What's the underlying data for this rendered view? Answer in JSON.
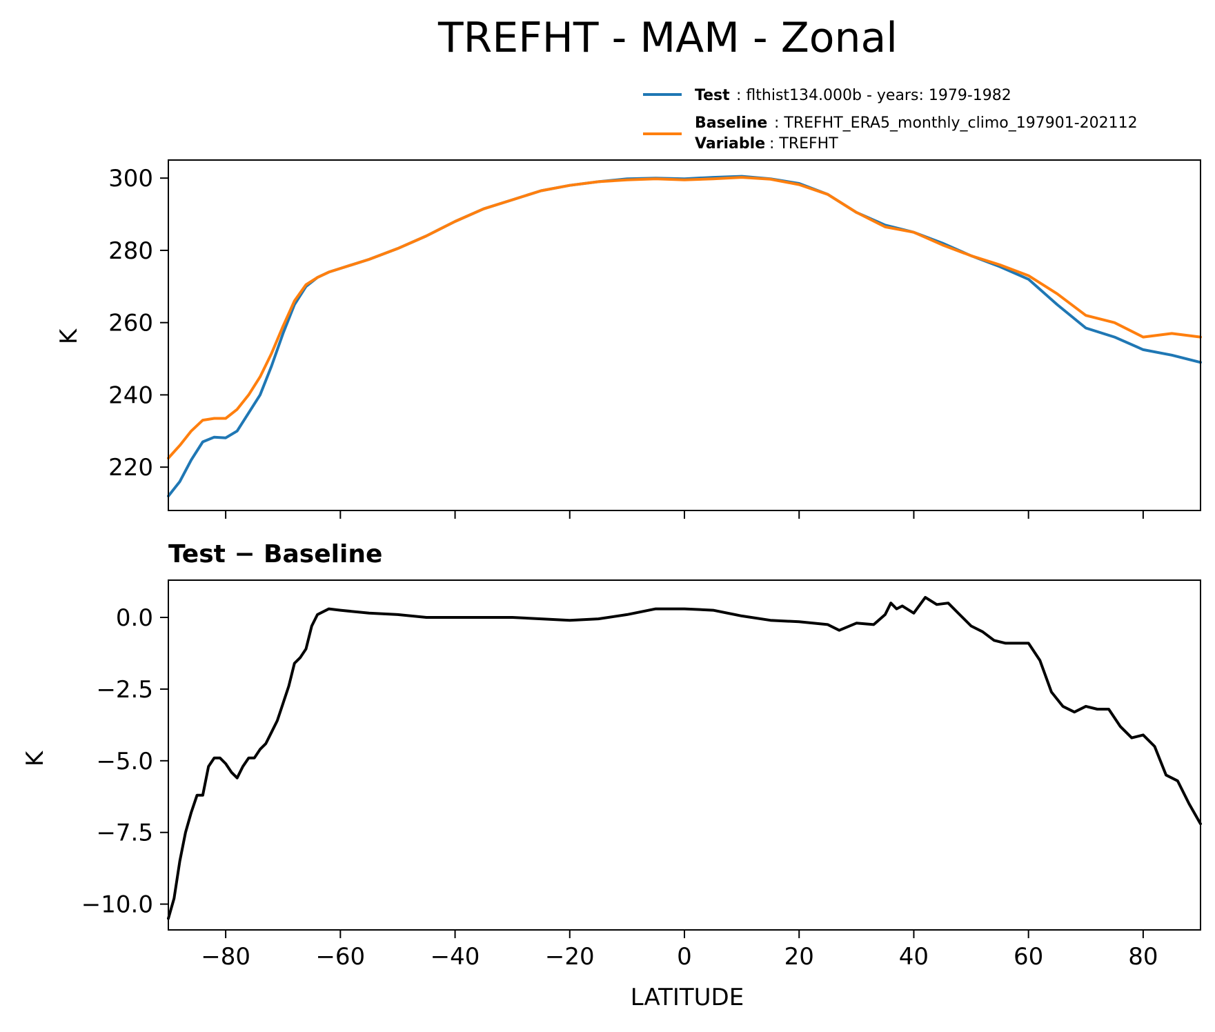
{
  "figure": {
    "title": "TREFHT - MAM - Zonal",
    "legend": {
      "test_key": "Test",
      "test_text": ": flthist134.000b - years: 1979-1982",
      "baseline_key": "Baseline",
      "baseline_text": ": TREFHT_ERA5_monthly_climo_197901-202112",
      "variable_key": "Variable",
      "variable_text": ": TREFHT"
    },
    "colors": {
      "test": "#1f77b4",
      "baseline": "#ff7f0e",
      "diff": "#000000"
    },
    "xlabel": "LATITUDE",
    "diff_title": "Test − Baseline"
  },
  "chart_data": [
    {
      "type": "line",
      "panel": "top",
      "ylabel": "K",
      "xlim": [
        -90,
        90
      ],
      "ylim": [
        208,
        305
      ],
      "yticks": [
        220,
        240,
        260,
        280,
        300
      ],
      "yticklabels": [
        "220",
        "240",
        "260",
        "280",
        "300"
      ],
      "xticks": [
        -80,
        -60,
        -40,
        -20,
        0,
        20,
        40,
        60,
        80
      ],
      "series": [
        {
          "name": "Test",
          "x": [
            -90,
            -88,
            -86,
            -84,
            -82,
            -80,
            -78,
            -76,
            -74,
            -72,
            -70,
            -68,
            -66,
            -64,
            -62,
            -60,
            -55,
            -50,
            -45,
            -40,
            -35,
            -30,
            -25,
            -20,
            -15,
            -10,
            -5,
            0,
            5,
            10,
            15,
            20,
            25,
            30,
            35,
            40,
            45,
            50,
            55,
            60,
            65,
            70,
            75,
            80,
            85,
            90
          ],
          "y": [
            212,
            216,
            222,
            227,
            228.3,
            228.1,
            230,
            235,
            240,
            248,
            257,
            265,
            270,
            272.5,
            274,
            275,
            277.5,
            280.5,
            284,
            288,
            291.5,
            294,
            296.5,
            298,
            299,
            299.8,
            300,
            299.8,
            300.2,
            300.5,
            299.8,
            298.5,
            295.5,
            290.5,
            287,
            285,
            282,
            278.5,
            275.5,
            272,
            265,
            258.5,
            256,
            252.5,
            251,
            249
          ]
        },
        {
          "name": "Baseline",
          "x": [
            -90,
            -88,
            -86,
            -84,
            -82,
            -80,
            -78,
            -76,
            -74,
            -72,
            -70,
            -68,
            -66,
            -64,
            -62,
            -60,
            -55,
            -50,
            -45,
            -40,
            -35,
            -30,
            -25,
            -20,
            -15,
            -10,
            -5,
            0,
            5,
            10,
            15,
            20,
            25,
            30,
            35,
            40,
            45,
            50,
            55,
            60,
            65,
            70,
            75,
            80,
            85,
            90
          ],
          "y": [
            222.5,
            226,
            230,
            233,
            233.5,
            233.5,
            236,
            240,
            245,
            251.5,
            259,
            266,
            270.5,
            272.5,
            274,
            275,
            277.5,
            280.5,
            284,
            288,
            291.5,
            294,
            296.5,
            298,
            299,
            299.5,
            299.8,
            299.5,
            299.8,
            300.2,
            299.7,
            298.2,
            295.5,
            290.5,
            286.5,
            285,
            281.5,
            278.5,
            276,
            273,
            268,
            262,
            260,
            256,
            257,
            256
          ]
        }
      ]
    },
    {
      "type": "line",
      "panel": "bottom",
      "title": "Test − Baseline",
      "xlabel": "LATITUDE",
      "ylabel": "K",
      "xlim": [
        -90,
        90
      ],
      "ylim": [
        -10.9,
        1.3
      ],
      "yticks": [
        -10,
        -7.5,
        -5,
        -2.5,
        0
      ],
      "yticklabels": [
        "−10.0",
        "−7.5",
        "−5.0",
        "−2.5",
        "0.0"
      ],
      "xticks": [
        -80,
        -60,
        -40,
        -20,
        0,
        20,
        40,
        60,
        80
      ],
      "xticklabels": [
        "−80",
        "−60",
        "−40",
        "−20",
        "0",
        "20",
        "40",
        "60",
        "80"
      ],
      "series": [
        {
          "name": "Test − Baseline",
          "x": [
            -90,
            -89,
            -88,
            -87,
            -86,
            -85,
            -84,
            -83,
            -82,
            -81,
            -80,
            -79,
            -78,
            -77,
            -76,
            -75,
            -74,
            -73,
            -72,
            -71,
            -70,
            -69,
            -68,
            -67,
            -66,
            -65,
            -64,
            -62,
            -60,
            -55,
            -50,
            -45,
            -40,
            -35,
            -30,
            -25,
            -20,
            -15,
            -10,
            -5,
            0,
            5,
            10,
            15,
            20,
            25,
            27,
            30,
            33,
            35,
            36,
            37,
            38,
            40,
            42,
            44,
            46,
            48,
            50,
            52,
            54,
            56,
            58,
            60,
            62,
            64,
            66,
            68,
            70,
            72,
            74,
            76,
            78,
            80,
            82,
            84,
            86,
            88,
            90
          ],
          "y": [
            -10.5,
            -9.8,
            -8.5,
            -7.5,
            -6.8,
            -6.2,
            -6.2,
            -5.2,
            -4.9,
            -4.9,
            -5.1,
            -5.4,
            -5.6,
            -5.2,
            -4.9,
            -4.9,
            -4.6,
            -4.4,
            -4.0,
            -3.6,
            -3.0,
            -2.4,
            -1.6,
            -1.4,
            -1.1,
            -0.3,
            0.1,
            0.3,
            0.25,
            0.15,
            0.1,
            0.0,
            0.0,
            0.0,
            0.0,
            -0.05,
            -0.1,
            -0.05,
            0.1,
            0.3,
            0.3,
            0.25,
            0.05,
            -0.1,
            -0.15,
            -0.25,
            -0.45,
            -0.2,
            -0.25,
            0.1,
            0.5,
            0.3,
            0.4,
            0.15,
            0.7,
            0.45,
            0.5,
            0.1,
            -0.3,
            -0.5,
            -0.8,
            -0.9,
            -0.9,
            -0.9,
            -1.5,
            -2.6,
            -3.1,
            -3.3,
            -3.1,
            -3.2,
            -3.2,
            -3.8,
            -4.2,
            -4.1,
            -4.5,
            -5.5,
            -5.7,
            -6.5,
            -7.2
          ]
        }
      ]
    }
  ]
}
